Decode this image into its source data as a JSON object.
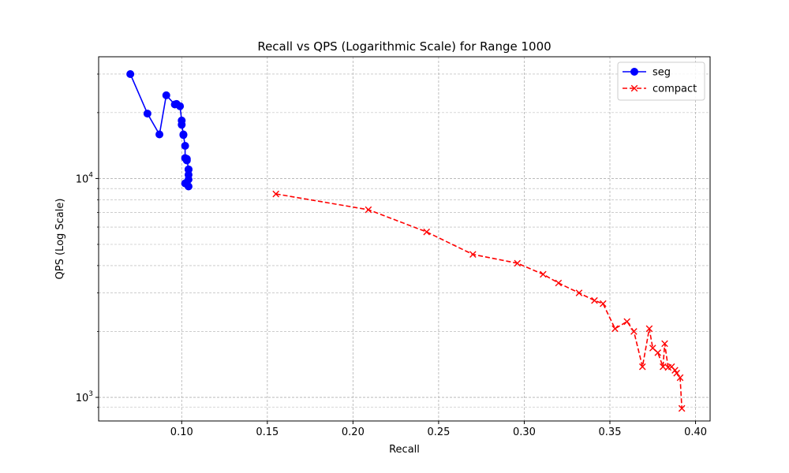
{
  "chart_data": {
    "type": "line",
    "title": "Recall vs QPS (Logarithmic Scale) for Range 1000",
    "xlabel": "Recall",
    "ylabel": "QPS (Log Scale)",
    "xlim": [
      0.0515,
      0.4085
    ],
    "ylim": [
      780,
      36000
    ],
    "yscale": "log",
    "grid": true,
    "legend_position": "top-right",
    "x_ticks": [
      {
        "value": 0.1,
        "label": "0.10"
      },
      {
        "value": 0.15,
        "label": "0.15"
      },
      {
        "value": 0.2,
        "label": "0.20"
      },
      {
        "value": 0.25,
        "label": "0.25"
      },
      {
        "value": 0.3,
        "label": "0.30"
      },
      {
        "value": 0.35,
        "label": "0.35"
      },
      {
        "value": 0.4,
        "label": "0.40"
      }
    ],
    "y_major_ticks": [
      {
        "value": 1000,
        "base": "10",
        "exp": "3"
      },
      {
        "value": 10000,
        "base": "10",
        "exp": "4"
      }
    ],
    "y_minor_ticks": [
      900,
      2000,
      3000,
      4000,
      5000,
      6000,
      7000,
      8000,
      9000,
      20000,
      30000
    ],
    "series": [
      {
        "name": "seg",
        "color": "#0000ff",
        "marker": "circle",
        "linestyle": "solid",
        "x": [
          0.07,
          0.08,
          0.087,
          0.091,
          0.096,
          0.097,
          0.099,
          0.1,
          0.1,
          0.101,
          0.101,
          0.102,
          0.102,
          0.103,
          0.103,
          0.104,
          0.104,
          0.104,
          0.104,
          0.103,
          0.102,
          0.104
        ],
        "y": [
          30000,
          19800,
          15900,
          24000,
          21800,
          21900,
          21400,
          18400,
          17600,
          15900,
          15800,
          14100,
          12400,
          12100,
          12300,
          11000,
          11000,
          10400,
          9900,
          9600,
          9500,
          9200
        ]
      },
      {
        "name": "compact",
        "color": "#ff0000",
        "marker": "x",
        "linestyle": "dashed",
        "x": [
          0.155,
          0.209,
          0.243,
          0.27,
          0.296,
          0.311,
          0.32,
          0.332,
          0.341,
          0.346,
          0.353,
          0.36,
          0.364,
          0.369,
          0.373,
          0.375,
          0.378,
          0.381,
          0.382,
          0.384,
          0.386,
          0.388,
          0.389,
          0.391,
          0.392
        ],
        "y": [
          8500,
          7200,
          5700,
          4500,
          4100,
          3650,
          3330,
          3000,
          2770,
          2680,
          2060,
          2220,
          2000,
          1380,
          2060,
          1680,
          1600,
          1380,
          1760,
          1370,
          1380,
          1330,
          1290,
          1230,
          890
        ]
      }
    ]
  }
}
